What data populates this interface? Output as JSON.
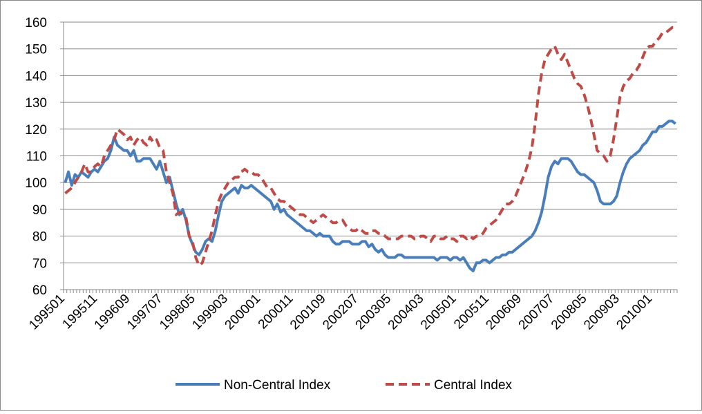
{
  "chart_data": {
    "type": "line",
    "categories": [
      "199501",
      null,
      null,
      null,
      null,
      null,
      null,
      null,
      null,
      null,
      "199511",
      null,
      null,
      null,
      null,
      null,
      null,
      null,
      null,
      null,
      "199609",
      null,
      null,
      null,
      null,
      null,
      null,
      null,
      null,
      null,
      "199707",
      null,
      null,
      null,
      null,
      null,
      null,
      null,
      null,
      null,
      "199805",
      null,
      null,
      null,
      null,
      null,
      null,
      null,
      null,
      null,
      "199903",
      null,
      null,
      null,
      null,
      null,
      null,
      null,
      null,
      null,
      "200001",
      null,
      null,
      null,
      null,
      null,
      null,
      null,
      null,
      null,
      "200011",
      null,
      null,
      null,
      null,
      null,
      null,
      null,
      null,
      null,
      "200109",
      null,
      null,
      null,
      null,
      null,
      null,
      null,
      null,
      null,
      "200207",
      null,
      null,
      null,
      null,
      null,
      null,
      null,
      null,
      null,
      "200305",
      null,
      null,
      null,
      null,
      null,
      null,
      null,
      null,
      null,
      "200403",
      null,
      null,
      null,
      null,
      null,
      null,
      null,
      null,
      null,
      "200501",
      null,
      null,
      null,
      null,
      null,
      null,
      null,
      null,
      null,
      "200511",
      null,
      null,
      null,
      null,
      null,
      null,
      null,
      null,
      null,
      "200609",
      null,
      null,
      null,
      null,
      null,
      null,
      null,
      null,
      null,
      "200707",
      null,
      null,
      null,
      null,
      null,
      null,
      null,
      null,
      null,
      "200805",
      null,
      null,
      null,
      null,
      null,
      null,
      null,
      null,
      null,
      "200903",
      null,
      null,
      null,
      null,
      null,
      null,
      null,
      null,
      null,
      "201001",
      null,
      null,
      null,
      null,
      null,
      null,
      null
    ],
    "series": [
      {
        "name": "Non-Central Index",
        "color": "#4a7ebb",
        "dash": false,
        "values": [
          100,
          104,
          99,
          103,
          102,
          104,
          103,
          102,
          104,
          105,
          104,
          106,
          108,
          109,
          112,
          117,
          114,
          113,
          112,
          112,
          110,
          112,
          108,
          108,
          109,
          109,
          109,
          107,
          105,
          108,
          104,
          100,
          102,
          97,
          92,
          88,
          90,
          86,
          80,
          77,
          74,
          73,
          75,
          78,
          79,
          78,
          82,
          88,
          93,
          95,
          96,
          97,
          98,
          96,
          99,
          98,
          98,
          99,
          98,
          97,
          96,
          95,
          94,
          93,
          90,
          92,
          89,
          90,
          88,
          87,
          86,
          85,
          84,
          83,
          82,
          82,
          81,
          80,
          81,
          80,
          80,
          80,
          78,
          77,
          77,
          78,
          78,
          78,
          77,
          77,
          77,
          78,
          78,
          76,
          77,
          75,
          74,
          75,
          73,
          72,
          72,
          72,
          73,
          73,
          72,
          72,
          72,
          72,
          72,
          72,
          72,
          72,
          72,
          72,
          71,
          72,
          72,
          72,
          71,
          72,
          72,
          71,
          72,
          70,
          68,
          67,
          70,
          70,
          71,
          71,
          70,
          71,
          72,
          72,
          73,
          73,
          74,
          74,
          75,
          76,
          77,
          78,
          79,
          80,
          82,
          85,
          89,
          95,
          102,
          106,
          108,
          107,
          109,
          109,
          109,
          108,
          106,
          104,
          103,
          103,
          102,
          101,
          100,
          97,
          93,
          92,
          92,
          92,
          93,
          95,
          100,
          104,
          107,
          109,
          110,
          111,
          112,
          114,
          115,
          117,
          119,
          119,
          121,
          121,
          122,
          123,
          123,
          122
        ]
      },
      {
        "name": "Central Index",
        "color": "#be4b48",
        "dash": true,
        "values": [
          96,
          97,
          98,
          100,
          102,
          104,
          107,
          104,
          104,
          106,
          107,
          106,
          110,
          112,
          114,
          116,
          120,
          119,
          118,
          116,
          117,
          114,
          116,
          117,
          115,
          114,
          117,
          115,
          116,
          113,
          112,
          104,
          100,
          96,
          88,
          89,
          88,
          87,
          80,
          78,
          72,
          69,
          70,
          74,
          78,
          82,
          88,
          93,
          96,
          98,
          100,
          101,
          102,
          102,
          104,
          105,
          104,
          104,
          103,
          103,
          102,
          100,
          98,
          98,
          96,
          94,
          93,
          93,
          92,
          91,
          90,
          89,
          88,
          88,
          87,
          86,
          85,
          86,
          87,
          88,
          87,
          86,
          85,
          85,
          86,
          86,
          84,
          83,
          82,
          82,
          83,
          82,
          81,
          81,
          82,
          82,
          81,
          81,
          80,
          79,
          79,
          79,
          79,
          80,
          80,
          80,
          80,
          79,
          79,
          80,
          80,
          79,
          78,
          80,
          80,
          79,
          79,
          80,
          79,
          79,
          78,
          80,
          80,
          79,
          80,
          79,
          80,
          80,
          81,
          83,
          84,
          85,
          86,
          88,
          90,
          92,
          92,
          93,
          95,
          98,
          101,
          104,
          108,
          113,
          122,
          133,
          141,
          146,
          148,
          150,
          151,
          148,
          146,
          148,
          145,
          142,
          139,
          137,
          136,
          133,
          129,
          124,
          118,
          112,
          111,
          110,
          108,
          110,
          116,
          124,
          132,
          136,
          138,
          139,
          141,
          142,
          144,
          147,
          150,
          151,
          151,
          153,
          154,
          156,
          156,
          157,
          158,
          158
        ]
      }
    ],
    "ylim": [
      60,
      160
    ],
    "yticks": [
      60,
      70,
      80,
      90,
      100,
      110,
      120,
      130,
      140,
      150,
      160
    ],
    "grid": true,
    "legend": "bottom"
  }
}
